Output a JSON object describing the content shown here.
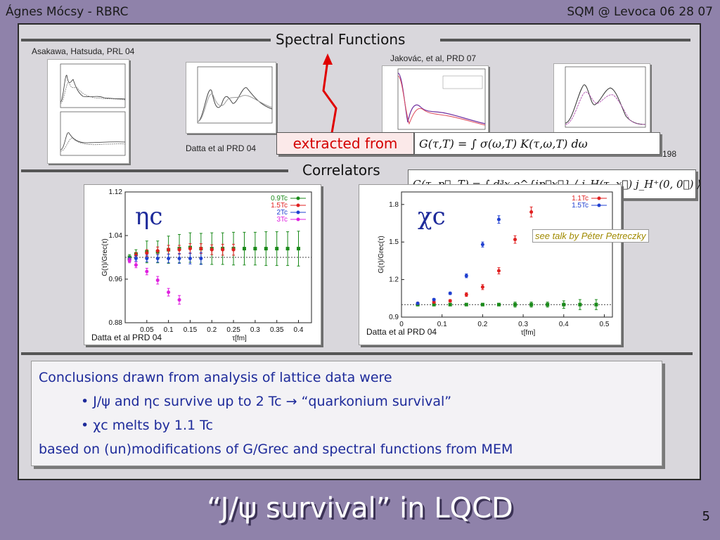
{
  "header": {
    "left": "Ágnes Mócsy - RBRC",
    "right": "SQM @ Levoca  06 28 07"
  },
  "section_spectral": "Spectral Functions",
  "section_correlators": "Correlators",
  "cite_asakawa": "Asakawa, Hatsuda, PRL 04",
  "cite_jakovac": "Jakovác, et al, PRD 07",
  "cite_datta_top": "Datta et al PRD 04",
  "cite_198": "198",
  "extracted_label": "extracted from",
  "formula_spectral": "G(τ,T) = ∫ σ(ω,T) K(τ,ω,T) dω",
  "formula_correlator": "G(τ, p⃗, T) = ∫ d³x e^{ip⃗x⃗} ⟨ j_H(τ, x⃗) j_H⁺(0, 0⃗) ⟩",
  "talk_note": "see talk by Péter Petreczky",
  "eta_label": "ηc",
  "chi_label": "χc",
  "conclusions": {
    "line1": "Conclusions drawn from analysis of lattice data were",
    "bullet1": "• J/ψ and ηc survive up to 2 Tc → “quarkonium survival”",
    "bullet2": "• χc melts by 1.1 Tc",
    "line4": "based on (un)modifications of G/Grec and spectral functions from MEM"
  },
  "title": "“J/ψ survival” in LQCD",
  "page_number": "5",
  "colors": {
    "green": "#1a8a1a",
    "red": "#e02020",
    "blue": "#2040d0",
    "magenta": "#e020e0",
    "text_blue": "#1d2a9a"
  },
  "chart_data": [
    {
      "type": "scatter",
      "name_panel": "eta_c",
      "xlabel": "τ[fm]",
      "ylabel": "G(τ)/Grec(τ)",
      "xlim": [
        0,
        0.43
      ],
      "ylim": [
        0.88,
        1.12
      ],
      "xticks": [
        0.05,
        0.1,
        0.15,
        0.2,
        0.25,
        0.3,
        0.35,
        0.4
      ],
      "yticks": [
        0.88,
        0.96,
        1.04,
        1.12
      ],
      "citation": "Datta et al PRD 04",
      "reference_line": 1.0,
      "series": [
        {
          "name": "0.9Tc",
          "color": "#1a8a1a",
          "marker": "square",
          "x": [
            0.01,
            0.025,
            0.05,
            0.075,
            0.1,
            0.125,
            0.15,
            0.175,
            0.2,
            0.225,
            0.25,
            0.275,
            0.3,
            0.325,
            0.35,
            0.375,
            0.4
          ],
          "y": [
            1.0,
            1.006,
            1.01,
            1.01,
            1.014,
            1.016,
            1.018,
            1.016,
            1.016,
            1.016,
            1.016,
            1.016,
            1.016,
            1.016,
            1.016,
            1.016,
            1.016
          ],
          "err": [
            0.005,
            0.008,
            0.02,
            0.02,
            0.025,
            0.026,
            0.027,
            0.028,
            0.029,
            0.029,
            0.03,
            0.03,
            0.03,
            0.031,
            0.031,
            0.031,
            0.032
          ]
        },
        {
          "name": "1.5Tc",
          "color": "#e02020",
          "marker": "circle",
          "x": [
            0.01,
            0.025,
            0.05,
            0.075,
            0.1,
            0.125,
            0.15,
            0.175,
            0.2,
            0.225,
            0.25
          ],
          "y": [
            0.996,
            1.004,
            1.008,
            1.012,
            1.014,
            1.014,
            1.016,
            1.016,
            1.014,
            1.014,
            1.014
          ],
          "err": [
            0.004,
            0.005,
            0.006,
            0.007,
            0.008,
            0.008,
            0.009,
            0.009,
            0.009,
            0.01,
            0.01
          ]
        },
        {
          "name": "2Tc",
          "color": "#2040d0",
          "marker": "star",
          "x": [
            0.01,
            0.025,
            0.05,
            0.075,
            0.1,
            0.125,
            0.15,
            0.175
          ],
          "y": [
            0.996,
            0.998,
            0.998,
            0.998,
            0.998,
            0.998,
            0.998,
            0.998
          ],
          "err": [
            0.004,
            0.005,
            0.006,
            0.007,
            0.008,
            0.009,
            0.01,
            0.011
          ]
        },
        {
          "name": "3Tc",
          "color": "#e020e0",
          "marker": "diamond",
          "x": [
            0.01,
            0.025,
            0.05,
            0.075,
            0.1,
            0.125
          ],
          "y": [
            0.994,
            0.986,
            0.974,
            0.958,
            0.936,
            0.922
          ],
          "err": [
            0.004,
            0.005,
            0.006,
            0.007,
            0.007,
            0.008
          ]
        }
      ]
    },
    {
      "type": "scatter",
      "name_panel": "chi_c",
      "xlabel": "τ[fm]",
      "ylabel": "G(τ)/Grec(τ)",
      "xlim": [
        0,
        0.52
      ],
      "ylim": [
        0.9,
        1.9
      ],
      "xticks": [
        0,
        0.1,
        0.2,
        0.3,
        0.4,
        0.5
      ],
      "yticks": [
        0.9,
        1.2,
        1.5,
        1.8
      ],
      "citation": "Datta et al PRD 04",
      "reference_line": 1.0,
      "series": [
        {
          "name": "",
          "color": "#1a8a1a",
          "marker": "square",
          "x": [
            0.04,
            0.08,
            0.12,
            0.16,
            0.2,
            0.24,
            0.28,
            0.32,
            0.36,
            0.4,
            0.44,
            0.48
          ],
          "y": [
            1.0,
            1.0,
            1.0,
            1.0,
            1.0,
            1.0,
            1.0,
            1.0,
            1.0,
            1.0,
            1.0,
            1.0
          ],
          "err": [
            0.005,
            0.005,
            0.005,
            0.01,
            0.01,
            0.01,
            0.02,
            0.02,
            0.02,
            0.03,
            0.04,
            0.04
          ]
        },
        {
          "name": "1.1Tc",
          "color": "#e02020",
          "marker": "circle",
          "x": [
            0.04,
            0.08,
            0.12,
            0.16,
            0.2,
            0.24,
            0.28,
            0.32
          ],
          "y": [
            1.01,
            1.02,
            1.03,
            1.08,
            1.14,
            1.27,
            1.52,
            1.74
          ],
          "err": [
            0.005,
            0.008,
            0.01,
            0.015,
            0.02,
            0.025,
            0.03,
            0.04
          ]
        },
        {
          "name": "1.5Tc",
          "color": "#2040d0",
          "marker": "star",
          "x": [
            0.04,
            0.08,
            0.12,
            0.16,
            0.2,
            0.24
          ],
          "y": [
            1.01,
            1.04,
            1.09,
            1.23,
            1.48,
            1.68
          ],
          "err": [
            0.005,
            0.008,
            0.01,
            0.015,
            0.02,
            0.03
          ]
        }
      ]
    }
  ]
}
